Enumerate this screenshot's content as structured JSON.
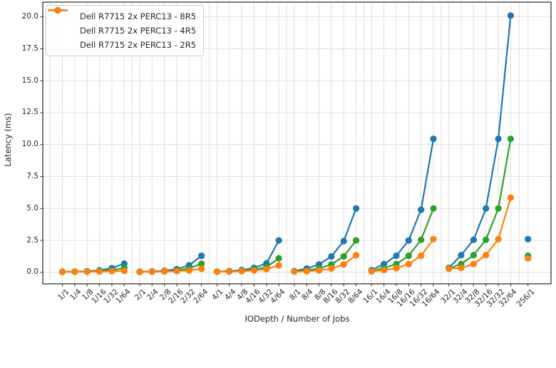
{
  "chart_data": {
    "type": "line",
    "title": "",
    "xlabel": "IODepth / Number of Jobs",
    "ylabel": "Latency (ms)",
    "ylim": [
      -0.9,
      21.15
    ],
    "yticks": [
      0,
      2.5,
      5,
      7.5,
      10,
      12.5,
      15,
      17.5,
      20
    ],
    "ytick_labels": [
      "0.0",
      "2.5",
      "5.0",
      "7.5",
      "10.0",
      "12.5",
      "15.0",
      "17.5",
      "20.0"
    ],
    "grid": true,
    "legend_position": "upper left",
    "group_sizes": [
      6,
      6,
      6,
      6,
      6,
      6,
      1
    ],
    "categories": [
      "1/1",
      "1/4",
      "1/8",
      "1/16",
      "1/32",
      "1/64",
      "2/1",
      "2/4",
      "2/8",
      "2/16",
      "2/32",
      "2/64",
      "4/1",
      "4/4",
      "4/8",
      "4/16",
      "4/32",
      "4/64",
      "8/1",
      "8/4",
      "8/8",
      "8/16",
      "8/32",
      "8/64",
      "16/1",
      "16/4",
      "16/8",
      "16/16",
      "16/32",
      "16/64",
      "32/1",
      "32/4",
      "32/8",
      "32/16",
      "32/32",
      "32/64",
      "256/1"
    ],
    "series": [
      {
        "name": "Dell R7715 2x PERC13 - 8R5",
        "color": "#1f77b4",
        "values": [
          0.05,
          0.06,
          0.09,
          0.16,
          0.33,
          0.68,
          0.05,
          0.07,
          0.12,
          0.25,
          0.55,
          1.3,
          0.06,
          0.1,
          0.18,
          0.35,
          0.7,
          2.5,
          0.1,
          0.3,
          0.62,
          1.25,
          2.45,
          5.0,
          0.17,
          0.65,
          1.3,
          2.5,
          4.9,
          10.45,
          0.35,
          1.35,
          2.55,
          5.0,
          10.45,
          20.1,
          2.6
        ]
      },
      {
        "name": "Dell R7715 2x PERC13 - 4R5",
        "color": "#2ca02c",
        "values": [
          0.04,
          0.05,
          0.07,
          0.1,
          0.16,
          0.35,
          0.05,
          0.06,
          0.09,
          0.15,
          0.3,
          0.68,
          0.06,
          0.08,
          0.12,
          0.22,
          0.4,
          1.1,
          0.07,
          0.15,
          0.3,
          0.62,
          1.25,
          2.5,
          0.1,
          0.33,
          0.65,
          1.3,
          2.55,
          5.0,
          0.3,
          0.65,
          1.35,
          2.55,
          5.0,
          10.45,
          1.3
        ]
      },
      {
        "name": "Dell R7715 2x PERC13 - 2R5",
        "color": "#ff7f0e",
        "values": [
          0.04,
          0.05,
          0.05,
          0.07,
          0.09,
          0.12,
          0.04,
          0.05,
          0.07,
          0.1,
          0.15,
          0.28,
          0.05,
          0.06,
          0.09,
          0.15,
          0.25,
          0.55,
          0.06,
          0.09,
          0.15,
          0.3,
          0.62,
          1.35,
          0.08,
          0.18,
          0.33,
          0.65,
          1.3,
          2.6,
          0.28,
          0.35,
          0.65,
          1.35,
          2.6,
          5.85,
          1.1
        ]
      }
    ]
  }
}
